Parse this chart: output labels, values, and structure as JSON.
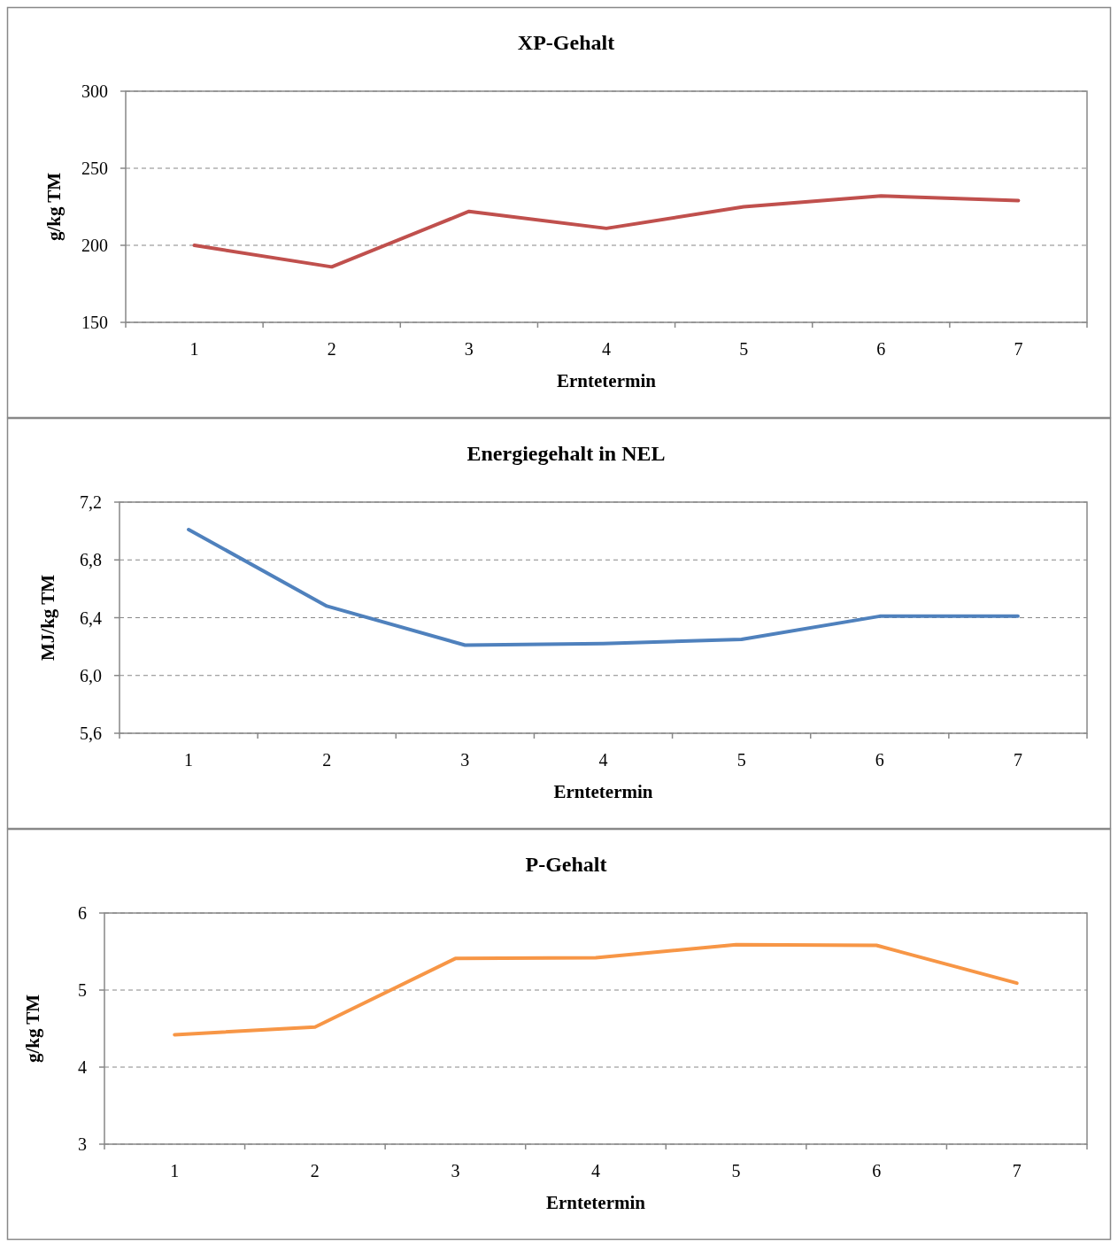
{
  "chart_data": [
    {
      "type": "line",
      "title": "XP-Gehalt",
      "xlabel": "Erntetermin",
      "ylabel": "g/kg TM",
      "categories": [
        "1",
        "2",
        "3",
        "4",
        "5",
        "6",
        "7"
      ],
      "series": [
        {
          "color": "#c0504d",
          "values": [
            200,
            186,
            222,
            211,
            225,
            232,
            229
          ]
        }
      ],
      "ylim": [
        150,
        300
      ],
      "yticks": [
        150,
        200,
        250,
        300
      ],
      "grid": "y",
      "marker": "none",
      "line_style": "solid"
    },
    {
      "type": "line",
      "title": "Energiegehalt in NEL",
      "xlabel": "Erntetermin",
      "ylabel": "MJ/kg TM",
      "categories": [
        "1",
        "2",
        "3",
        "4",
        "5",
        "6",
        "7"
      ],
      "series": [
        {
          "color": "#4f81bd",
          "values": [
            7.01,
            6.48,
            6.21,
            6.22,
            6.25,
            6.41,
            6.41
          ]
        }
      ],
      "ylim": [
        5.6,
        7.2
      ],
      "yticks": [
        {
          "value": 5.6,
          "label": "5,6"
        },
        {
          "value": 6.0,
          "label": "6,0"
        },
        {
          "value": 6.4,
          "label": "6,4"
        },
        {
          "value": 6.8,
          "label": "6,8"
        },
        {
          "value": 7.2,
          "label": "7,2"
        }
      ],
      "grid": "y",
      "marker": "none",
      "line_style": "solid"
    },
    {
      "type": "line",
      "title": "P-Gehalt",
      "xlabel": "Erntetermin",
      "ylabel": "g/kg TM",
      "categories": [
        "1",
        "2",
        "3",
        "4",
        "5",
        "6",
        "7"
      ],
      "series": [
        {
          "color": "#f79646",
          "values": [
            4.42,
            4.52,
            5.41,
            5.42,
            5.59,
            5.58,
            5.09
          ]
        }
      ],
      "ylim": [
        3,
        6
      ],
      "yticks": [
        3,
        4,
        5,
        6
      ],
      "grid": "y",
      "marker": "none",
      "line_style": "solid"
    }
  ]
}
